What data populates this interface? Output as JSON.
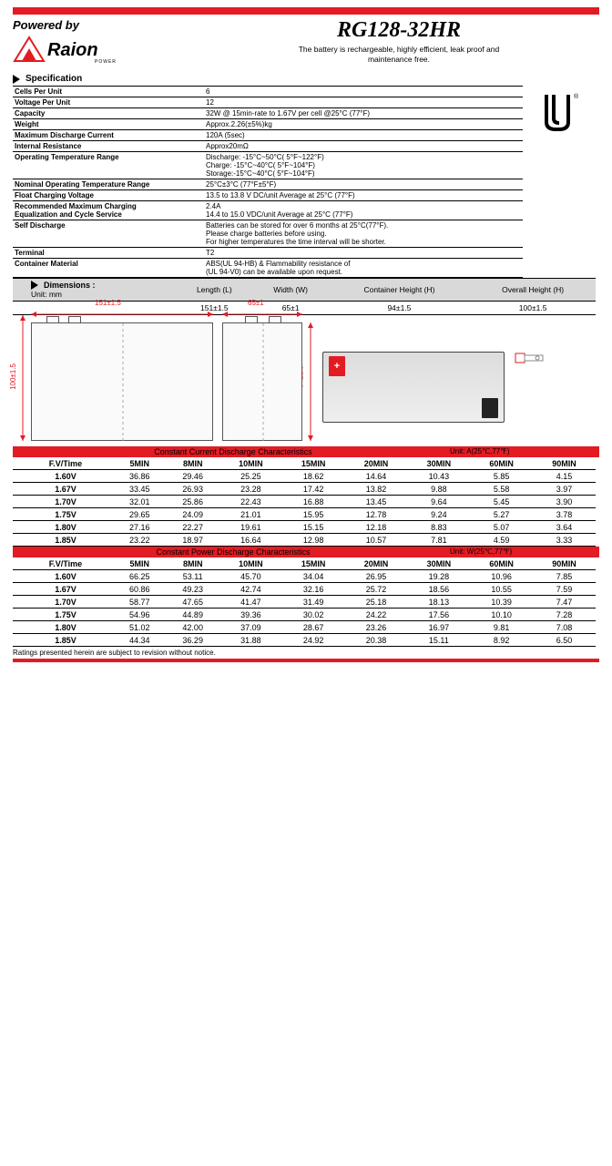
{
  "colors": {
    "accent": "#e31b23",
    "header_gray": "#d9d9d9"
  },
  "header": {
    "powered_by": "Powered by",
    "model": "RG128-32HR",
    "tagline": "The battery is rechargeable, highly efficient, leak proof and\nmaintenance free."
  },
  "sections": {
    "spec": "Specification",
    "dims": "Dimensions :"
  },
  "spec_rows": [
    {
      "label": "Cells Per Unit",
      "value": "6"
    },
    {
      "label": "Voltage Per Unit",
      "value": "12"
    },
    {
      "label": "Capacity",
      "value": "32W @ 15min-rate to 1.67V per cell @25°C (77°F)"
    },
    {
      "label": "Weight",
      "value": "Approx.2.26(±5%)kg"
    },
    {
      "label": "Maximum Discharge Current",
      "value": "120A (5sec)"
    },
    {
      "label": "Internal Resistance",
      "value": "Approx20mΩ"
    },
    {
      "label": "Operating Temperature Range",
      "value": "Discharge: -15°C~50°C( 5°F~122°F)\nCharge: -15°C~40°C( 5°F~104°F)\nStorage:-15°C~40°C( 5°F~104°F)"
    },
    {
      "label": "Nominal Operating Temperature Range",
      "value": "25°C±3°C (77°F±5°F)"
    },
    {
      "label": "Float Charging Voltage",
      "value": "13.5 to 13.8 V DC/unit Average at 25°C (77°F)"
    },
    {
      "label": "Recommended Maximum Charging\nEqualization and Cycle Service",
      "value": "2.4A\n14.4 to 15.0 VDC/unit Average at 25°C (77°F)"
    },
    {
      "label": "Self Discharge",
      "value": "Batteries can be stored for over 6 months at 25°C(77°F).\nPlease charge batteries before using.\nFor higher temperatures the time interval will be shorter."
    },
    {
      "label": "Terminal",
      "value": "T2"
    },
    {
      "label": "Container Material",
      "value": "ABS(UL 94-HB) & Flammability resistance of\n(UL 94-V0) can be available upon request."
    }
  ],
  "dimensions": {
    "unit_label": "Unit: mm",
    "headers": [
      "Length (L)",
      "Width (W)",
      "Container Height (H)",
      "Overall Height (H)"
    ],
    "values": [
      "151±1.5",
      "65±1",
      "94±1.5",
      "100±1.5"
    ]
  },
  "diagram_labels": {
    "length": "151±1.5",
    "width": "65±1",
    "c_height": "94±1.5",
    "o_height": "100±1.5"
  },
  "current_table": {
    "title": "Constant Current Discharge Characteristics",
    "unit": "Unit: A(25℃,77℉)",
    "col_head": "F.V/Time",
    "cols": [
      "5MIN",
      "8MIN",
      "10MIN",
      "15MIN",
      "20MIN",
      "30MIN",
      "60MIN",
      "90MIN"
    ],
    "rows": [
      {
        "v": "1.60V",
        "d": [
          "36.86",
          "29.46",
          "25.25",
          "18.62",
          "14.64",
          "10.43",
          "5.85",
          "4.15"
        ]
      },
      {
        "v": "1.67V",
        "d": [
          "33.45",
          "26.93",
          "23.28",
          "17.42",
          "13.82",
          "9.88",
          "5.58",
          "3.97"
        ]
      },
      {
        "v": "1.70V",
        "d": [
          "32.01",
          "25.86",
          "22.43",
          "16.88",
          "13.45",
          "9.64",
          "5.45",
          "3.90"
        ]
      },
      {
        "v": "1.75V",
        "d": [
          "29.65",
          "24.09",
          "21.01",
          "15.95",
          "12.78",
          "9.24",
          "5.27",
          "3.78"
        ]
      },
      {
        "v": "1.80V",
        "d": [
          "27.16",
          "22.27",
          "19.61",
          "15.15",
          "12.18",
          "8.83",
          "5.07",
          "3.64"
        ]
      },
      {
        "v": "1.85V",
        "d": [
          "23.22",
          "18.97",
          "16.64",
          "12.98",
          "10.57",
          "7.81",
          "4.59",
          "3.33"
        ]
      }
    ]
  },
  "power_table": {
    "title": "Constant Power Discharge Characteristics",
    "unit": "Unit: W(25℃,77℉)",
    "col_head": "F.V/Time",
    "cols": [
      "5MIN",
      "8MIN",
      "10MIN",
      "15MIN",
      "20MIN",
      "30MIN",
      "60MIN",
      "90MIN"
    ],
    "rows": [
      {
        "v": "1.60V",
        "d": [
          "66.25",
          "53.11",
          "45.70",
          "34.04",
          "26.95",
          "19.28",
          "10.96",
          "7.85"
        ]
      },
      {
        "v": "1.67V",
        "d": [
          "60.86",
          "49.23",
          "42.74",
          "32.16",
          "25.72",
          "18.56",
          "10.55",
          "7.59"
        ]
      },
      {
        "v": "1.70V",
        "d": [
          "58.77",
          "47.65",
          "41.47",
          "31.49",
          "25.18",
          "18.13",
          "10.39",
          "7.47"
        ]
      },
      {
        "v": "1.75V",
        "d": [
          "54.96",
          "44.89",
          "39.36",
          "30.02",
          "24.22",
          "17.56",
          "10.10",
          "7.28"
        ]
      },
      {
        "v": "1.80V",
        "d": [
          "51.02",
          "42.00",
          "37.09",
          "28.67",
          "23.26",
          "16.97",
          "9.81",
          "7.08"
        ]
      },
      {
        "v": "1.85V",
        "d": [
          "44.34",
          "36.29",
          "31.88",
          "24.92",
          "20.38",
          "15.11",
          "8.92",
          "6.50"
        ]
      }
    ]
  },
  "footnote": "Ratings presented herein are subject to revision without notice."
}
